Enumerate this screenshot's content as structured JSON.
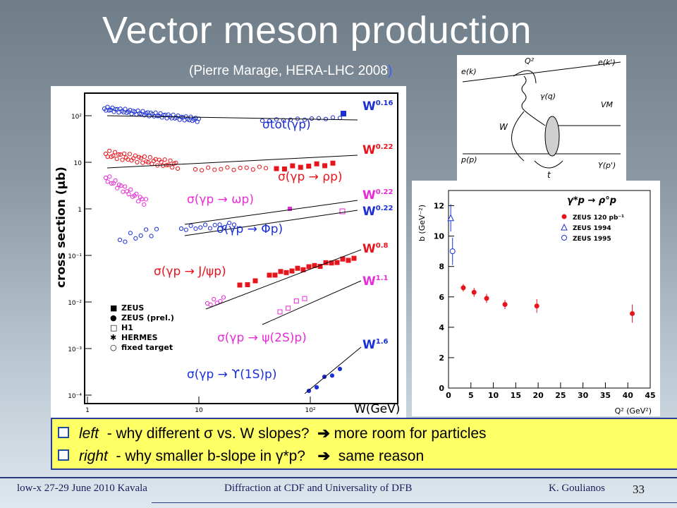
{
  "slide": {
    "title": "Vector meson production",
    "subtitle_main": "(Pierre Marage, HERA-LHC 2008",
    "subtitle_close": ")"
  },
  "left_plot": {
    "y_axis_label": "cross section (μb)",
    "x_axis_label": "W(GeV)",
    "y_ticks": [
      "10²",
      "10",
      "1",
      "10⁻¹",
      "10⁻²",
      "10⁻³",
      "10⁻⁴"
    ],
    "x_ticks": [
      "1",
      "10",
      "10²"
    ],
    "process_labels": {
      "tot": "σtot(γp)",
      "rho": "σ(γp → ρp)",
      "omega": "σ(γp → ωp)",
      "phi": "σ(γp → Φp)",
      "jpsi": "σ(γp → J/ψp)",
      "psi2s": "σ(γp → ψ(2S)p)",
      "upsilon": "σ(γp → ϒ(1S)p)"
    },
    "slope_labels": [
      "W0.16",
      "W0.22",
      "W0.22",
      "W0.22",
      "W0.8",
      "W1.1",
      "W1.6"
    ],
    "legend": [
      "ZEUS",
      "ZEUS (prel.)",
      "H1",
      "HERMES",
      "fixed target"
    ],
    "colors": {
      "tot": "#1a2fd6",
      "rho": "#e8141c",
      "omega": "#e82bd6",
      "phi": "#1a2fd6",
      "jpsi": "#e8141c",
      "psi2s": "#e82bd6",
      "upsilon": "#1a2fd6"
    }
  },
  "diagram": {
    "labels": [
      "e(k)",
      "e(k')",
      "Q²",
      "γ(q)",
      "VM",
      "W",
      "p(p)",
      "Y(p')",
      "t"
    ]
  },
  "right_plot": {
    "process_label": "γ*p → ρ°p",
    "y_axis_label": "b (GeV⁻²)",
    "x_axis_label": "Q² (GeV²)",
    "y_ticks": [
      "0",
      "2",
      "4",
      "6",
      "8",
      "10",
      "12"
    ],
    "x_ticks": [
      "0",
      "5",
      "10",
      "15",
      "20",
      "25",
      "30",
      "35",
      "40",
      "45"
    ],
    "legend": [
      "ZEUS 120 pb⁻¹",
      "ZEUS 1994",
      "ZEUS 1995"
    ]
  },
  "chart_data": {
    "type": "scatter",
    "xlabel": "Q² (GeV²)",
    "ylabel": "b (GeV⁻²)",
    "xlim": [
      0,
      45
    ],
    "ylim": [
      0,
      13
    ],
    "series": [
      {
        "name": "ZEUS 120 pb⁻¹",
        "color": "#e8141c",
        "marker": "filled-circle",
        "x": [
          3.3,
          5.7,
          8.5,
          12.6,
          19.7,
          41
        ],
        "y": [
          6.6,
          6.3,
          5.9,
          5.5,
          5.4,
          4.9
        ],
        "err": [
          0.25,
          0.3,
          0.3,
          0.3,
          0.45,
          0.6
        ]
      },
      {
        "name": "ZEUS 1994",
        "color": "#1a2fd6",
        "marker": "open-triangle",
        "x": [
          0.5
        ],
        "y": [
          11.2
        ],
        "err": [
          0.9
        ]
      },
      {
        "name": "ZEUS 1995",
        "color": "#1a2fd6",
        "marker": "open-circle",
        "x": [
          0.9
        ],
        "y": [
          9.0
        ],
        "err": [
          0.9
        ]
      }
    ]
  },
  "notes": [
    {
      "label": "left",
      "text": "- why different σ vs. W slopes?",
      "answer": "more room for particles"
    },
    {
      "label": "right",
      "text": "- why smaller b-slope in γ*p?",
      "answer": "same reason"
    }
  ],
  "footer": {
    "left": "low-x 27-29 June 2010 Kavala",
    "center": "Diffraction at CDF and Universality of DFB",
    "right": "K. Goulianos",
    "page": "33"
  }
}
